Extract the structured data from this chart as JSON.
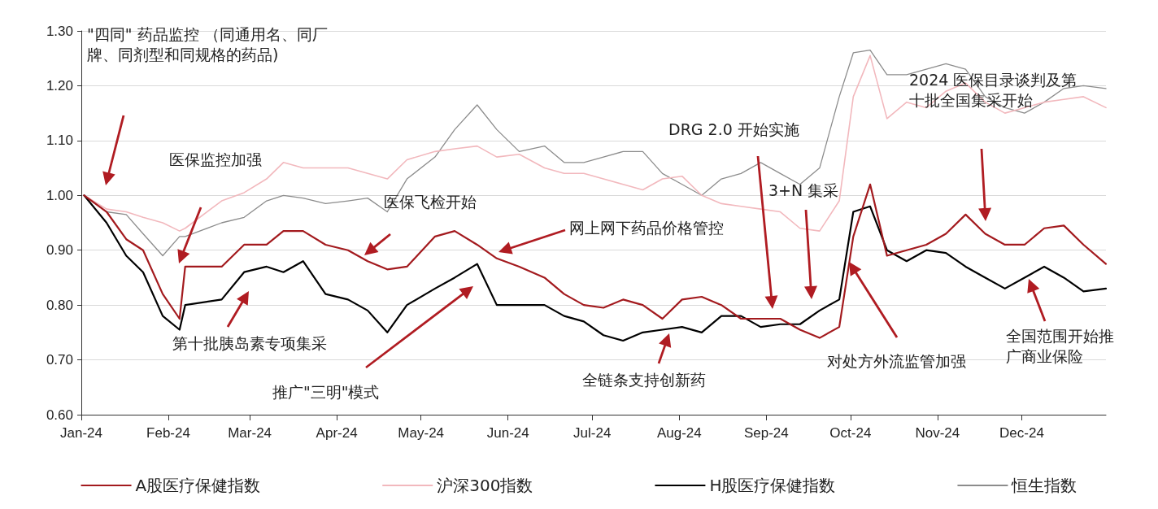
{
  "chart_data": {
    "type": "line",
    "x": [
      "2024-01-02",
      "2024-01-10",
      "2024-01-17",
      "2024-01-23",
      "2024-01-30",
      "2024-02-05",
      "2024-02-07",
      "2024-02-20",
      "2024-02-28",
      "2024-03-07",
      "2024-03-13",
      "2024-03-20",
      "2024-03-28",
      "2024-04-05",
      "2024-04-12",
      "2024-04-19",
      "2024-04-26",
      "2024-05-06",
      "2024-05-13",
      "2024-05-21",
      "2024-05-28",
      "2024-06-05",
      "2024-06-14",
      "2024-06-21",
      "2024-06-28",
      "2024-07-05",
      "2024-07-12",
      "2024-07-19",
      "2024-07-26",
      "2024-08-02",
      "2024-08-09",
      "2024-08-16",
      "2024-08-23",
      "2024-08-30",
      "2024-09-06",
      "2024-09-13",
      "2024-09-20",
      "2024-09-27",
      "2024-10-02",
      "2024-10-08",
      "2024-10-14",
      "2024-10-21",
      "2024-10-28",
      "2024-11-04",
      "2024-11-11",
      "2024-11-18",
      "2024-11-25",
      "2024-12-02",
      "2024-12-09",
      "2024-12-16",
      "2024-12-23",
      "2024-12-31"
    ],
    "series": [
      {
        "name": "A股医疗保健指数",
        "color": "#a31a1e",
        "values": [
          1.0,
          0.97,
          0.92,
          0.9,
          0.82,
          0.775,
          0.87,
          0.87,
          0.91,
          0.91,
          0.935,
          0.935,
          0.91,
          0.9,
          0.88,
          0.865,
          0.87,
          0.925,
          0.935,
          0.91,
          0.885,
          0.87,
          0.85,
          0.82,
          0.8,
          0.795,
          0.81,
          0.8,
          0.775,
          0.81,
          0.815,
          0.8,
          0.775,
          0.775,
          0.775,
          0.755,
          0.74,
          0.76,
          0.925,
          1.02,
          0.89,
          0.9,
          0.91,
          0.93,
          0.965,
          0.93,
          0.91,
          0.91,
          0.94,
          0.945,
          0.91,
          0.875
        ]
      },
      {
        "name": "沪深300指数",
        "color": "#f2b8bd",
        "values": [
          1.0,
          0.975,
          0.97,
          0.96,
          0.95,
          0.935,
          0.94,
          0.99,
          1.005,
          1.03,
          1.06,
          1.05,
          1.05,
          1.05,
          1.04,
          1.03,
          1.065,
          1.08,
          1.085,
          1.09,
          1.07,
          1.075,
          1.05,
          1.04,
          1.04,
          1.03,
          1.02,
          1.01,
          1.03,
          1.035,
          1.0,
          0.985,
          0.98,
          0.975,
          0.97,
          0.94,
          0.935,
          0.99,
          1.18,
          1.255,
          1.14,
          1.17,
          1.16,
          1.19,
          1.205,
          1.17,
          1.15,
          1.16,
          1.17,
          1.175,
          1.18,
          1.16
        ]
      },
      {
        "name": "H股医疗保健指数",
        "color": "#000000",
        "values": [
          1.0,
          0.95,
          0.89,
          0.86,
          0.78,
          0.755,
          0.8,
          0.81,
          0.86,
          0.87,
          0.86,
          0.88,
          0.82,
          0.81,
          0.79,
          0.75,
          0.8,
          0.83,
          0.85,
          0.875,
          0.8,
          0.8,
          0.8,
          0.78,
          0.77,
          0.745,
          0.735,
          0.75,
          0.755,
          0.76,
          0.75,
          0.78,
          0.78,
          0.76,
          0.765,
          0.765,
          0.79,
          0.81,
          0.97,
          0.98,
          0.9,
          0.88,
          0.9,
          0.895,
          0.87,
          0.85,
          0.83,
          0.85,
          0.87,
          0.85,
          0.825,
          0.83
        ]
      },
      {
        "name": "恒生指数",
        "color": "#8c8c8c",
        "values": [
          1.0,
          0.97,
          0.965,
          0.93,
          0.89,
          0.925,
          0.925,
          0.95,
          0.96,
          0.99,
          1.0,
          0.995,
          0.985,
          0.99,
          0.995,
          0.97,
          1.03,
          1.07,
          1.12,
          1.165,
          1.12,
          1.08,
          1.09,
          1.06,
          1.06,
          1.07,
          1.08,
          1.08,
          1.04,
          1.02,
          1.0,
          1.03,
          1.04,
          1.06,
          1.04,
          1.02,
          1.05,
          1.18,
          1.26,
          1.265,
          1.22,
          1.22,
          1.23,
          1.24,
          1.23,
          1.18,
          1.16,
          1.15,
          1.17,
          1.195,
          1.2,
          1.195
        ]
      }
    ],
    "xlim": [
      "2024-01-01",
      "2024-12-31"
    ],
    "xticks": [
      {
        "value": "2024-01-01",
        "label": "Jan-24"
      },
      {
        "value": "2024-02-01",
        "label": "Feb-24"
      },
      {
        "value": "2024-03-01",
        "label": "Mar-24"
      },
      {
        "value": "2024-04-01",
        "label": "Apr-24"
      },
      {
        "value": "2024-05-01",
        "label": "May-24"
      },
      {
        "value": "2024-06-01",
        "label": "Jun-24"
      },
      {
        "value": "2024-07-01",
        "label": "Jul-24"
      },
      {
        "value": "2024-08-01",
        "label": "Aug-24"
      },
      {
        "value": "2024-09-01",
        "label": "Sep-24"
      },
      {
        "value": "2024-10-01",
        "label": "Oct-24"
      },
      {
        "value": "2024-11-01",
        "label": "Nov-24"
      },
      {
        "value": "2024-12-01",
        "label": "Dec-24"
      }
    ],
    "ylim": [
      0.6,
      1.3
    ],
    "yticks": [
      {
        "value": 0.6,
        "label": "0.60"
      },
      {
        "value": 0.7,
        "label": "0.70"
      },
      {
        "value": 0.8,
        "label": "0.80"
      },
      {
        "value": 0.9,
        "label": "0.90"
      },
      {
        "value": 1.0,
        "label": "1.00"
      },
      {
        "value": 1.1,
        "label": "1.10"
      },
      {
        "value": 1.2,
        "label": "1.20"
      },
      {
        "value": 1.3,
        "label": "1.30"
      }
    ],
    "grid": "y",
    "legend": "bottom",
    "marker": "none",
    "line_style": "solid",
    "annotations": [
      "\"四同\" 药品监控 （同通用名、同厂牌、同剂型和同规格的药品)",
      "医保监控加强",
      "医保飞检开始",
      "网上网下药品价格管控",
      "第十批胰岛素专项集采",
      "推广\"三明\"模式",
      "全链条支持创新药",
      "DRG 2.0 开始实施",
      "3+N 集采",
      "2024 医保目录谈判及第十批全国集采开始",
      "对处方外流监管加强",
      "全国范围开始推广商业保险"
    ]
  }
}
